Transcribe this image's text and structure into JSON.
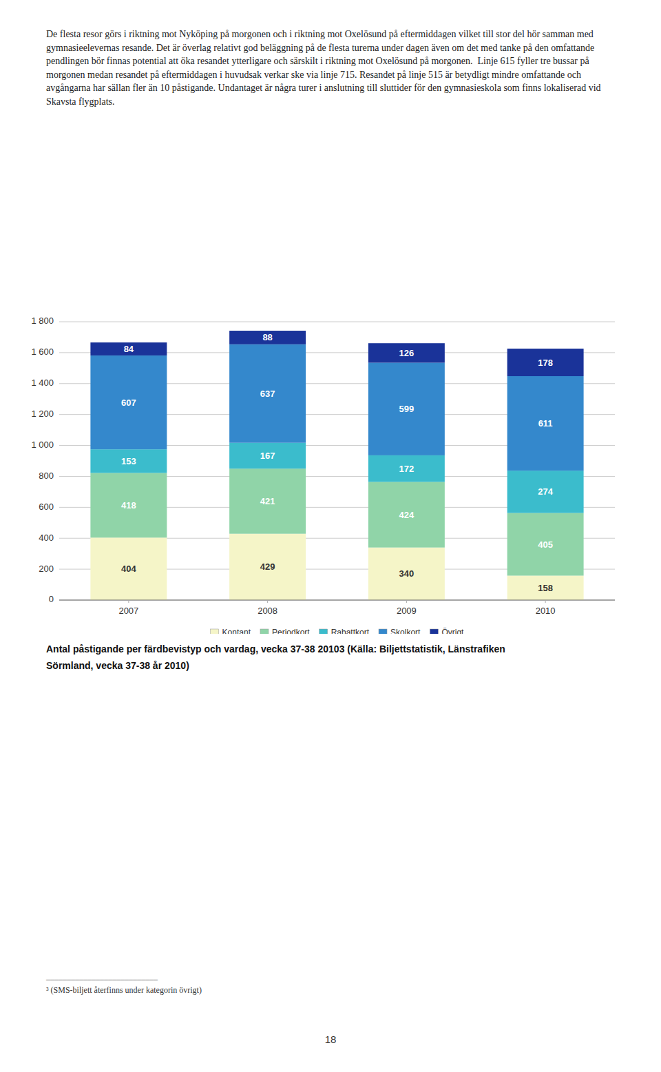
{
  "chart_data": {
    "type": "bar",
    "stacked": true,
    "categories": [
      "2007",
      "2008",
      "2009",
      "2010"
    ],
    "series": [
      {
        "name": "Kontant",
        "color": "#f5f5c8",
        "values": [
          404,
          429,
          340,
          158
        ]
      },
      {
        "name": "Periodkort",
        "color": "#90d4a8",
        "values": [
          418,
          421,
          424,
          405
        ]
      },
      {
        "name": "Rabattkort",
        "color": "#3bbccc",
        "values": [
          153,
          167,
          172,
          274
        ]
      },
      {
        "name": "Skolkort",
        "color": "#3488cc",
        "values": [
          607,
          637,
          599,
          611
        ]
      },
      {
        "name": "Övrigt",
        "color": "#1a3399",
        "values": [
          84,
          88,
          126,
          178
        ]
      }
    ],
    "ylim": [
      0,
      1800
    ],
    "yticks": [
      0,
      200,
      400,
      600,
      800,
      {
        "value": 1000,
        "label": "1 000"
      },
      {
        "value": 1200,
        "label": "1 200"
      },
      {
        "value": 1400,
        "label": "1 400"
      },
      {
        "value": 1600,
        "label": "1 600"
      },
      {
        "value": 1800,
        "label": "1 800"
      }
    ],
    "grid": true,
    "data_labels": true,
    "legend": "bottom"
  },
  "paragraph": "De flesta resor görs i riktning mot Nyköping på morgonen och i riktning mot Oxelösund på eftermiddagen vilket till stor del hör samman med gymnasieelevernas resande. Det är överlag relativt god beläggning på de flesta turerna under dagen även om det med tanke på den omfattande pendlingen bör finnas potential att öka resandet ytterligare och särskilt i riktning mot Oxelösund på morgonen.  Linje 615 fyller tre bussar på morgonen medan resandet på eftermiddagen i huvudsak verkar ske via linje 715. Resandet på linje 515 är betydligt mindre omfattande och avgångarna har sällan fler än 10 påstigande. Undantaget är några turer i anslutning till sluttider för den gymnasieskola som finns lokaliserad vid Skavsta flygplats.",
  "caption": [
    "Antal påstigande per färdbevistyp och vardag, vecka 37-38 20103 (Källa: Biljettstatistik, Länstrafiken",
    "Sörmland, vecka 37-38 år 2010)"
  ],
  "footnote_rule": "___________________________",
  "footnote": "³ (SMS-biljett återfinns under kategorin övrigt)",
  "page_number": "18"
}
